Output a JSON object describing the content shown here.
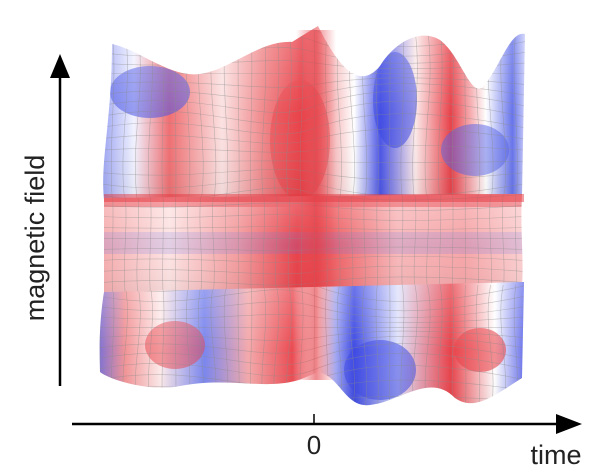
{
  "figure": {
    "y_axis_label": "magnetic field",
    "x_axis_label": "time",
    "x_tick_label": "0",
    "colors": {
      "positive": "#e8424a",
      "negative": "#4b55e6",
      "neutral": "#ffffff",
      "grid_lines": "#8c8c8c",
      "axes": "#000000"
    }
  }
}
